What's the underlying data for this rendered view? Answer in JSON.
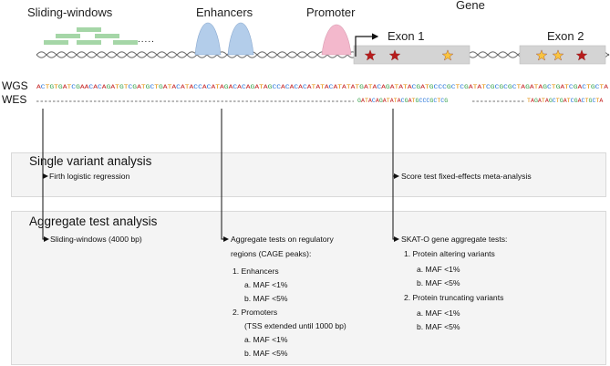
{
  "top_labels": {
    "sliding_windows": "Sliding-windows",
    "enhancers": "Enhancers",
    "promoter": "Promoter",
    "gene": "Gene",
    "exon1": "Exon 1",
    "exon2": "Exon 2",
    "dots": "....."
  },
  "tracks": {
    "wgs_label": "WGS",
    "wes_label": "WES",
    "wgs_sequence": "ACTGTGATCGAACACAGATGTCGATGCTGATACATACCACATAGACACAGATAGCCACACACATATACATATATGATACAGATATACGATGCCCGCTCGATATCGCGCGCTAGATAGCTGATCGACTGCTA",
    "wes_seq_1": "GATACAGATATACGATGCCCGCTCG",
    "wes_seq_2": "TAGATAGCTGATCGACTGCTA"
  },
  "colors": {
    "A": "#c62828",
    "C": "#1e6fd9",
    "G": "#2e9e43",
    "T": "#e08a00",
    "window_bar": "#a5d6a7",
    "enhancer": "#b3cdea",
    "promoter": "#f3b8cc",
    "exon": "#d4d4d4",
    "star_red": "#b71c1c",
    "star_yellow": "#f9c440"
  },
  "single": {
    "title": "Single variant analysis",
    "firth": "Firth logistic regression",
    "score": "Score test fixed-effects meta-analysis"
  },
  "aggregate": {
    "title": "Aggregate test analysis",
    "sliding": "Sliding-windows (4000 bp)",
    "reg_line1": "Aggregate tests on regulatory",
    "reg_line2": "regions (CAGE peaks):",
    "enh_head": "1. Enhancers",
    "enh_a": "a. MAF <1%",
    "enh_b": "b. MAF <5%",
    "prom_head": "2. Promoters",
    "prom_note": "(TSS extended until 1000 bp)",
    "prom_a": "a. MAF <1%",
    "prom_b": "b. MAF <5%",
    "skat_head": "SKAT-O gene aggregate tests:",
    "pa_head": "1. Protein altering variants",
    "pa_a": "a. MAF <1%",
    "pa_b": "b. MAF <5%",
    "pt_head": "2. Protein truncating variants",
    "pt_a": "a. MAF <1%",
    "pt_b": "b. MAF <5%"
  }
}
